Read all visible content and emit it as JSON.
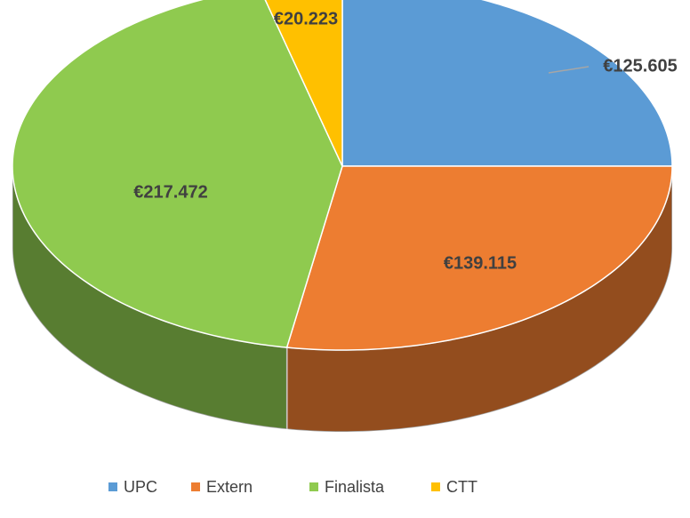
{
  "chart_data": {
    "type": "pie3d",
    "categories": [
      "UPC",
      "Extern",
      "Finalista",
      "CTT"
    ],
    "values": [
      125605,
      139115,
      217472,
      20223
    ],
    "value_labels": [
      "€125.605",
      "€139.115",
      "€217.472",
      "€20.223"
    ],
    "colors": [
      "#5b9bd5",
      "#ed7d31",
      "#8fca4f",
      "#ffc000"
    ],
    "legend": "bottom"
  }
}
